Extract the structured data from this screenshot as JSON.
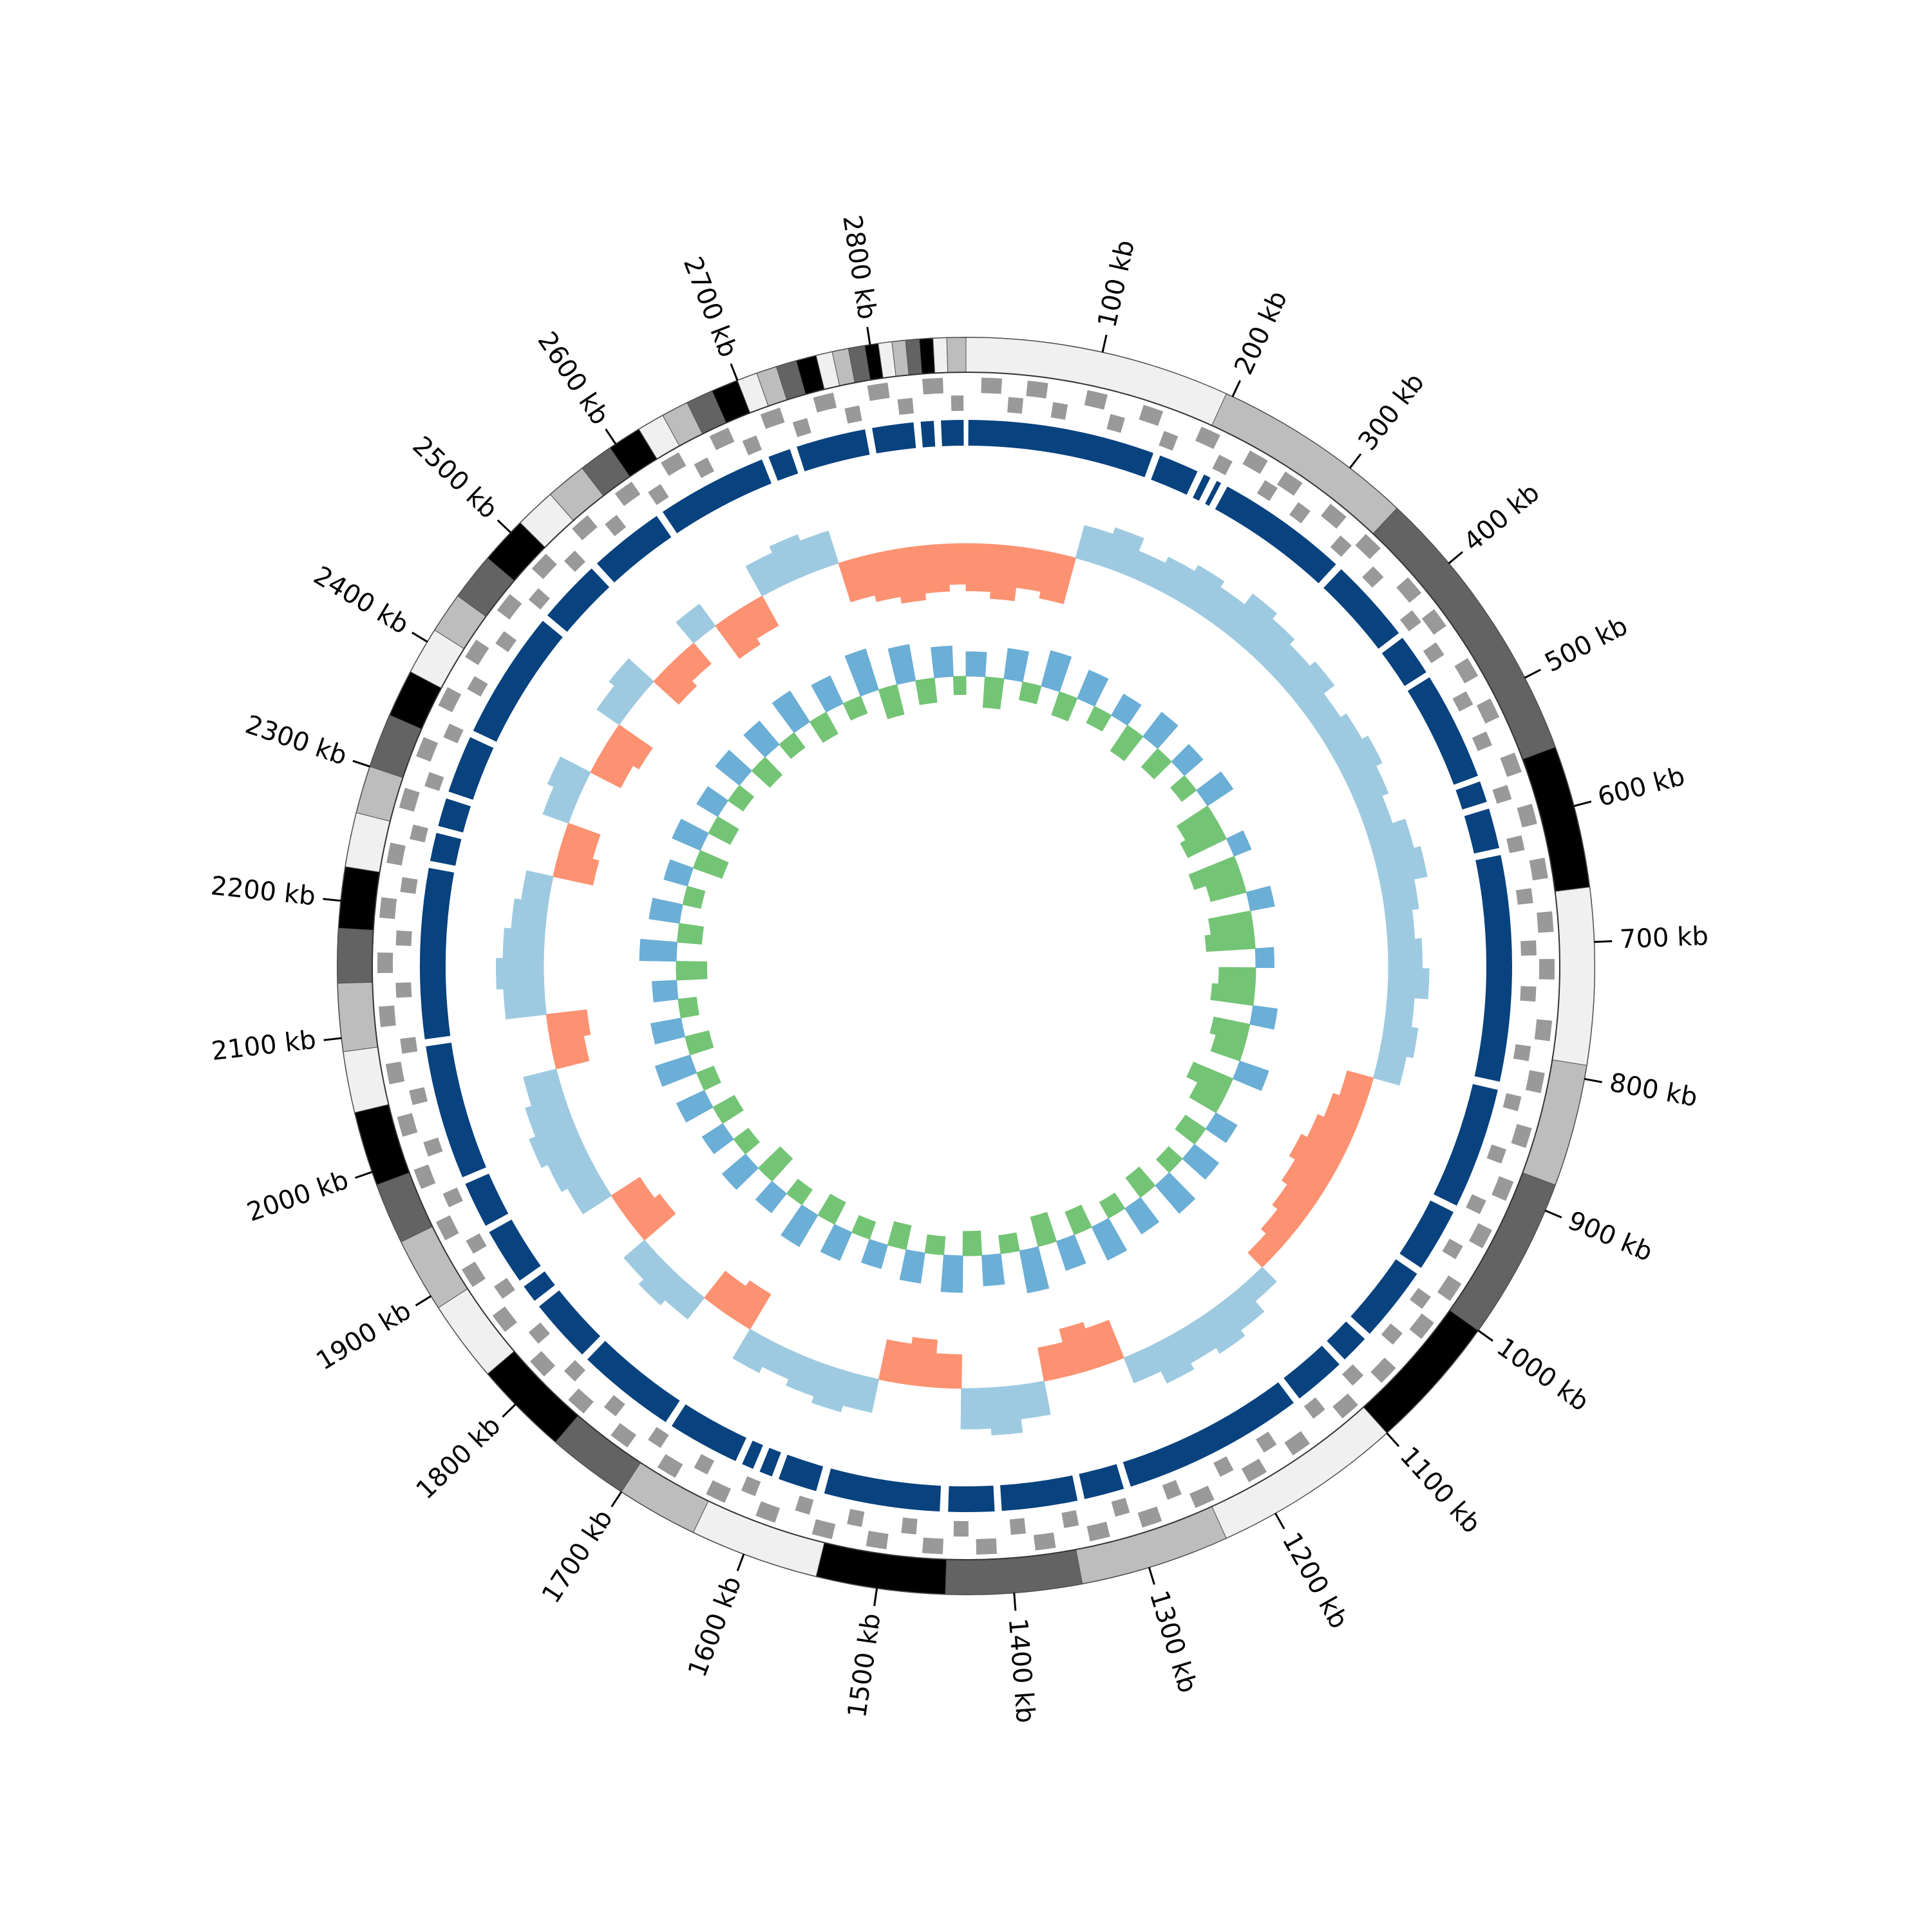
{
  "chart_data": {
    "type": "circos",
    "xlim": [
      0,
      2870
    ],
    "xticks": [
      {
        "value": 100,
        "label": "100 kb"
      },
      {
        "value": 200,
        "label": "200 kb"
      },
      {
        "value": 300,
        "label": "300 kb"
      },
      {
        "value": 400,
        "label": "400 kb"
      },
      {
        "value": 500,
        "label": "500 kb"
      },
      {
        "value": 600,
        "label": "600 kb"
      },
      {
        "value": 700,
        "label": "700 kb"
      },
      {
        "value": 800,
        "label": "800 kb"
      },
      {
        "value": 900,
        "label": "900 kb"
      },
      {
        "value": 1000,
        "label": "1000 kb"
      },
      {
        "value": 1100,
        "label": "1100 kb"
      },
      {
        "value": 1200,
        "label": "1200 kb"
      },
      {
        "value": 1300,
        "label": "1300 kb"
      },
      {
        "value": 1400,
        "label": "1400 kb"
      },
      {
        "value": 1500,
        "label": "1500 kb"
      },
      {
        "value": 1600,
        "label": "1600 kb"
      },
      {
        "value": 1700,
        "label": "1700 kb"
      },
      {
        "value": 1800,
        "label": "1800 kb"
      },
      {
        "value": 1900,
        "label": "1900 kb"
      },
      {
        "value": 2000,
        "label": "2000 kb"
      },
      {
        "value": 2100,
        "label": "2100 kb"
      },
      {
        "value": 2200,
        "label": "2200 kb"
      },
      {
        "value": 2300,
        "label": "2300 kb"
      },
      {
        "value": 2400,
        "label": "2400 kb"
      },
      {
        "value": 2500,
        "label": "2500 kb"
      },
      {
        "value": 2600,
        "label": "2600 kb"
      },
      {
        "value": 2700,
        "label": "2700 kb"
      },
      {
        "value": 2800,
        "label": "2800 kb"
      }
    ],
    "bands": {
      "colors": [
        "#f0f0f0",
        "#bdbdbd",
        "#636363",
        "#000000"
      ],
      "edges": [
        0,
        195,
        345,
        555,
        660,
        790,
        880,
        1000,
        1100,
        1240,
        1350,
        1450,
        1545,
        1640,
        1700,
        1760,
        1830,
        1890,
        1945,
        1990,
        2045,
        2090,
        2140,
        2180,
        2225,
        2265,
        2300,
        2340,
        2375,
        2410,
        2440,
        2475,
        2510,
        2540,
        2570,
        2595,
        2620,
        2640,
        2660,
        2680,
        2700,
        2715,
        2730,
        2745,
        2760,
        2772,
        2784,
        2796,
        2806,
        2816,
        2826,
        2836,
        2846,
        2856,
        2870
      ]
    },
    "genes": {
      "color": "#999999",
      "forward": [
        [
          12,
          28
        ],
        [
          48,
          64
        ],
        [
          95,
          111
        ],
        [
          140,
          156
        ],
        [
          188,
          204
        ],
        [
          230,
          246
        ],
        [
          262,
          278
        ],
        [
          305,
          321
        ],
        [
          341,
          357
        ],
        [
          388,
          404
        ],
        [
          420,
          436
        ],
        [
          466,
          482
        ],
        [
          502,
          518
        ],
        [
          548,
          564
        ],
        [
          590,
          606
        ],
        [
          633,
          649
        ],
        [
          675,
          691
        ],
        [
          712,
          728
        ],
        [
          760,
          776
        ],
        [
          801,
          817
        ],
        [
          845,
          861
        ],
        [
          889,
          905
        ],
        [
          930,
          946
        ],
        [
          978,
          994
        ],
        [
          1015,
          1031
        ],
        [
          1061,
          1077
        ],
        [
          1102,
          1118
        ],
        [
          1150,
          1166
        ],
        [
          1190,
          1206
        ],
        [
          1236,
          1252
        ],
        [
          1280,
          1296
        ],
        [
          1322,
          1338
        ],
        [
          1365,
          1381
        ],
        [
          1411,
          1427
        ],
        [
          1453,
          1469
        ],
        [
          1497,
          1513
        ],
        [
          1540,
          1556
        ],
        [
          1586,
          1602
        ],
        [
          1628,
          1644
        ],
        [
          1671,
          1687
        ],
        [
          1715,
          1731
        ],
        [
          1758,
          1774
        ],
        [
          1800,
          1816
        ],
        [
          1846,
          1862
        ],
        [
          1889,
          1905
        ],
        [
          1931,
          1947
        ],
        [
          1975,
          1991
        ],
        [
          2018,
          2034
        ],
        [
          2060,
          2076
        ],
        [
          2105,
          2121
        ],
        [
          2147,
          2163
        ],
        [
          2190,
          2206
        ],
        [
          2233,
          2249
        ],
        [
          2277,
          2293
        ],
        [
          2319,
          2335
        ],
        [
          2362,
          2378
        ],
        [
          2405,
          2421
        ],
        [
          2449,
          2465
        ],
        [
          2491,
          2507
        ],
        [
          2535,
          2551
        ],
        [
          2578,
          2594
        ],
        [
          2621,
          2637
        ],
        [
          2664,
          2680
        ],
        [
          2707,
          2723
        ],
        [
          2750,
          2766
        ],
        [
          2793,
          2809
        ],
        [
          2836,
          2852
        ]
      ],
      "reverse": [
        [
          34,
          46
        ],
        [
          70,
          82
        ],
        [
          117,
          129
        ],
        [
          162,
          174
        ],
        [
          210,
          222
        ],
        [
          252,
          264
        ],
        [
          284,
          296
        ],
        [
          327,
          339
        ],
        [
          363,
          375
        ],
        [
          410,
          422
        ],
        [
          442,
          454
        ],
        [
          488,
          500
        ],
        [
          524,
          536
        ],
        [
          570,
          582
        ],
        [
          612,
          624
        ],
        [
          655,
          667
        ],
        [
          697,
          709
        ],
        [
          734,
          746
        ],
        [
          782,
          794
        ],
        [
          823,
          835
        ],
        [
          867,
          879
        ],
        [
          911,
          923
        ],
        [
          952,
          964
        ],
        [
          1000,
          1012
        ],
        [
          1037,
          1049
        ],
        [
          1083,
          1095
        ],
        [
          1124,
          1136
        ],
        [
          1172,
          1184
        ],
        [
          1212,
          1224
        ],
        [
          1258,
          1270
        ],
        [
          1302,
          1314
        ],
        [
          1344,
          1356
        ],
        [
          1387,
          1399
        ],
        [
          1433,
          1445
        ],
        [
          1475,
          1487
        ],
        [
          1519,
          1531
        ],
        [
          1562,
          1574
        ],
        [
          1608,
          1620
        ],
        [
          1650,
          1662
        ],
        [
          1693,
          1705
        ],
        [
          1737,
          1749
        ],
        [
          1780,
          1792
        ],
        [
          1822,
          1834
        ],
        [
          1868,
          1880
        ],
        [
          1911,
          1923
        ],
        [
          1953,
          1965
        ],
        [
          1997,
          2009
        ],
        [
          2040,
          2052
        ],
        [
          2082,
          2094
        ],
        [
          2127,
          2139
        ],
        [
          2169,
          2181
        ],
        [
          2212,
          2224
        ],
        [
          2255,
          2267
        ],
        [
          2299,
          2311
        ],
        [
          2341,
          2353
        ],
        [
          2384,
          2396
        ],
        [
          2427,
          2439
        ],
        [
          2471,
          2483
        ],
        [
          2513,
          2525
        ],
        [
          2557,
          2569
        ],
        [
          2600,
          2612
        ],
        [
          2643,
          2655
        ],
        [
          2686,
          2698
        ],
        [
          2729,
          2741
        ],
        [
          2772,
          2784
        ],
        [
          2815,
          2827
        ],
        [
          2858,
          2868
        ]
      ]
    },
    "alignments": {
      "color": "#08427f",
      "segments": [
        [
          2,
          160
        ],
        [
          166,
          200
        ],
        [
          206,
          212
        ],
        [
          218,
          222
        ],
        [
          228,
          340
        ],
        [
          346,
          418
        ],
        [
          423,
          458
        ],
        [
          463,
          555
        ],
        [
          560,
          578
        ],
        [
          584,
          618
        ],
        [
          624,
          815
        ],
        [
          822,
          925
        ],
        [
          931,
          985
        ],
        [
          991,
          1055
        ],
        [
          1061,
          1085
        ],
        [
          1091,
          1135
        ],
        [
          1141,
          1295
        ],
        [
          1301,
          1335
        ],
        [
          1341,
          1405
        ],
        [
          1411,
          1450
        ],
        [
          1457,
          1555
        ],
        [
          1562,
          1595
        ],
        [
          1601,
          1612
        ],
        [
          1618,
          1628
        ],
        [
          1634,
          1695
        ],
        [
          1701,
          1785
        ],
        [
          1791,
          1845
        ],
        [
          1851,
          1866
        ],
        [
          1872,
          1920
        ],
        [
          1926,
          1965
        ],
        [
          1971,
          2085
        ],
        [
          2091,
          2235
        ],
        [
          2241,
          2265
        ],
        [
          2271,
          2295
        ],
        [
          2301,
          2350
        ],
        [
          2356,
          2465
        ],
        [
          2471,
          2525
        ],
        [
          2531,
          2595
        ],
        [
          2601,
          2695
        ],
        [
          2701,
          2720
        ],
        [
          2726,
          2785
        ],
        [
          2791,
          2826
        ],
        [
          2832,
          2843
        ],
        [
          2849,
          2868
        ]
      ]
    },
    "windows": [
      0,
      30,
      60,
      90,
      120,
      150,
      180,
      210,
      240,
      270,
      300,
      330,
      360,
      390,
      420,
      450,
      480,
      510,
      540,
      570,
      600,
      630,
      660,
      690,
      720,
      750,
      780,
      810,
      840,
      870,
      900,
      930,
      960,
      990,
      1020,
      1050,
      1080,
      1110,
      1140,
      1170,
      1200,
      1230,
      1260,
      1290,
      1320,
      1350,
      1380,
      1410,
      1440,
      1470,
      1500,
      1530,
      1560,
      1590,
      1620,
      1650,
      1680,
      1710,
      1740,
      1770,
      1800,
      1830,
      1860,
      1890,
      1920,
      1950,
      1980,
      2010,
      2040,
      2070,
      2100,
      2130,
      2160,
      2190,
      2220,
      2250,
      2280,
      2310,
      2340,
      2370,
      2400,
      2430,
      2460,
      2490,
      2520,
      2550,
      2580,
      2610,
      2640,
      2670,
      2700,
      2730,
      2760,
      2790,
      2820,
      2850
    ],
    "gc_skew": {
      "positive_color": "#9ecae1",
      "negative_color": "#fc9272",
      "ylim": [
        -0.1,
        0.1
      ],
      "values": [
        -0.07,
        -0.08,
        -0.06,
        -0.07,
        0.05,
        0.06,
        0.04,
        0.05,
        0.06,
        0.05,
        0.07,
        0.06,
        0.05,
        0.06,
        0.04,
        0.05,
        0.06,
        0.05,
        0.04,
        0.06,
        0.07,
        0.05,
        0.04,
        0.05,
        0.06,
        0.04,
        0.05,
        0.04,
        -0.04,
        -0.05,
        -0.06,
        -0.07,
        -0.06,
        -0.05,
        -0.04,
        -0.03,
        0.03,
        0.05,
        0.06,
        0.05,
        0.06,
        0.04,
        -0.06,
        -0.07,
        -0.05,
        0.05,
        0.07,
        0.06,
        -0.05,
        -0.07,
        -0.06,
        0.05,
        0.06,
        0.05,
        0.04,
        0.05,
        -0.06,
        -0.05,
        0.04,
        0.05,
        0.04,
        -0.06,
        -0.05,
        0.05,
        0.06,
        0.07,
        0.06,
        0.05,
        -0.05,
        -0.06,
        0.06,
        0.07,
        0.06,
        0.05,
        0.04,
        -0.06,
        -0.05,
        0.04,
        0.05,
        -0.05,
        -0.06,
        0.04,
        0.05,
        -0.05,
        -0.04,
        0.04,
        -0.06,
        -0.05,
        0.05,
        0.06,
        0.05,
        -0.06,
        -0.07,
        -0.08,
        -0.07,
        -0.06
      ]
    },
    "gc_content": {
      "positive_color": "#6baed6",
      "negative_color": "#74c476",
      "ylim": [
        -0.1,
        0.1
      ],
      "values": [
        0.04,
        -0.05,
        0.05,
        -0.03,
        0.06,
        -0.04,
        0.05,
        -0.03,
        0.04,
        -0.05,
        0.05,
        -0.04,
        0.04,
        -0.03,
        0.05,
        -0.06,
        -0.07,
        0.03,
        -0.08,
        -0.06,
        0.04,
        -0.07,
        -0.08,
        0.03,
        -0.06,
        -0.07,
        0.04,
        -0.06,
        -0.05,
        0.05,
        -0.07,
        -0.05,
        0.04,
        -0.04,
        0.05,
        -0.03,
        0.06,
        -0.04,
        0.05,
        -0.03,
        0.06,
        -0.04,
        0.05,
        -0.05,
        0.07,
        -0.03,
        0.05,
        -0.04,
        0.06,
        -0.03,
        0.05,
        -0.04,
        0.04,
        -0.03,
        0.05,
        -0.04,
        0.06,
        -0.03,
        0.04,
        -0.05,
        0.05,
        -0.03,
        0.04,
        -0.04,
        0.05,
        -0.03,
        0.06,
        -0.04,
        0.05,
        -0.03,
        0.04,
        -0.05,
        0.06,
        -0.04,
        0.05,
        -0.03,
        0.04,
        -0.05,
        0.05,
        -0.04,
        0.04,
        -0.03,
        0.05,
        -0.04,
        0.05,
        -0.03,
        0.06,
        -0.04,
        0.05,
        -0.03,
        0.07,
        -0.05,
        0.06,
        -0.04,
        0.05,
        -0.03
      ]
    }
  }
}
